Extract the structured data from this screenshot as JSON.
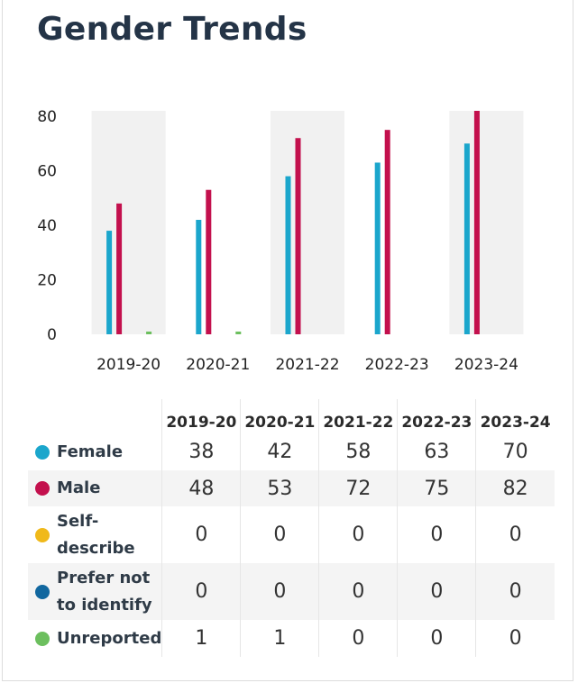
{
  "page": {
    "title": "Gender Trends"
  },
  "colors": {
    "Female": "#1ba6cc",
    "Male": "#c3104d",
    "Self-describe": "#f0b91a",
    "Prefer not to identify": "#11679f",
    "Unreported": "#6cbf5e",
    "band": "#f1f1f1"
  },
  "chart_data": {
    "type": "bar",
    "title": "Gender Trends",
    "categories": [
      "2019-20",
      "2020-21",
      "2021-22",
      "2022-23",
      "2023-24"
    ],
    "series": [
      {
        "name": "Female",
        "values": [
          38,
          42,
          58,
          63,
          70
        ]
      },
      {
        "name": "Male",
        "values": [
          48,
          53,
          72,
          75,
          82
        ]
      },
      {
        "name": "Self-describe",
        "values": [
          0,
          0,
          0,
          0,
          0
        ]
      },
      {
        "name": "Prefer not to identify",
        "values": [
          0,
          0,
          0,
          0,
          0
        ]
      },
      {
        "name": "Unreported",
        "values": [
          1,
          1,
          0,
          0,
          0
        ]
      }
    ],
    "yticks": [
      0,
      20,
      40,
      60,
      80
    ],
    "ylim": [
      0,
      82
    ],
    "xlabel": "",
    "ylabel": "",
    "grid": false,
    "legend": "table below chart"
  },
  "table": {
    "headers": [
      "2019-20",
      "2020-21",
      "2021-22",
      "2022-23",
      "2023-24"
    ],
    "rows": [
      {
        "label": "Female",
        "values": [
          "38",
          "42",
          "58",
          "63",
          "70"
        ]
      },
      {
        "label": "Male",
        "values": [
          "48",
          "53",
          "72",
          "75",
          "82"
        ]
      },
      {
        "label_lines": [
          "Self-",
          "describe"
        ],
        "values": [
          "0",
          "0",
          "0",
          "0",
          "0"
        ]
      },
      {
        "label_lines": [
          "Prefer not",
          "to identify"
        ],
        "values": [
          "0",
          "0",
          "0",
          "0",
          "0"
        ]
      },
      {
        "label": "Unreported",
        "values": [
          "1",
          "1",
          "0",
          "0",
          "0"
        ]
      }
    ]
  }
}
